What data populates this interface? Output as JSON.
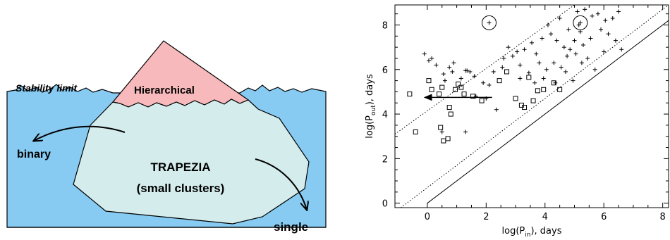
{
  "diagram": {
    "stability_label": "Stability limit",
    "hierarchical_label": "Hierarchical",
    "binary_label": "binary",
    "trapezia_title": "TRAPEZIA",
    "trapezia_subtitle": "(small clusters)",
    "single_label": "single",
    "colors": {
      "sea": "#87cbf2",
      "iceberg_submerged": "#d4ecec",
      "iceberg_tip": "#f7b9bb",
      "outline": "#000000"
    }
  },
  "chart_data": {
    "type": "scatter",
    "xlabel_prefix": "log(P",
    "xlabel_sub": "in",
    "xlabel_suffix": "), days",
    "ylabel_prefix": "log(P",
    "ylabel_sub": "out",
    "ylabel_suffix": "), days",
    "xlim": [
      -1.1,
      8.2
    ],
    "ylim": [
      -0.2,
      8.9
    ],
    "x_ticks": [
      0,
      2,
      4,
      6,
      8
    ],
    "x_tick_labels": [
      "0",
      "2",
      "4",
      "6",
      "8"
    ],
    "y_ticks": [
      0,
      2,
      4,
      6,
      8
    ],
    "y_tick_labels": [
      "0",
      "2",
      "4",
      "6",
      "8"
    ],
    "grid": false,
    "series": [
      {
        "marker": "plus",
        "points": [
          [
            -0.1,
            6.7
          ],
          [
            0.05,
            6.4
          ],
          [
            0.15,
            6.5
          ],
          [
            0.3,
            6.2
          ],
          [
            0.55,
            5.8
          ],
          [
            0.6,
            5.5
          ],
          [
            0.75,
            6.1
          ],
          [
            0.85,
            5.9
          ],
          [
            0.9,
            6.3
          ],
          [
            1.15,
            5.6
          ],
          [
            1.35,
            5.95
          ],
          [
            1.45,
            5.9
          ],
          [
            1.6,
            5.7
          ],
          [
            1.65,
            4.8
          ],
          [
            1.9,
            5.4
          ],
          [
            2.0,
            4.7
          ],
          [
            2.1,
            5.3
          ],
          [
            2.25,
            5.9
          ],
          [
            2.35,
            4.2
          ],
          [
            2.55,
            6.1
          ],
          [
            2.6,
            6.5
          ],
          [
            2.75,
            7.0
          ],
          [
            2.9,
            6.6
          ],
          [
            3.05,
            6.8
          ],
          [
            3.15,
            6.2
          ],
          [
            3.3,
            6.9
          ],
          [
            3.45,
            5.85
          ],
          [
            3.55,
            7.2
          ],
          [
            3.65,
            5.4
          ],
          [
            3.7,
            6.7
          ],
          [
            3.8,
            6.3
          ],
          [
            3.9,
            7.4
          ],
          [
            3.95,
            5.6
          ],
          [
            4.05,
            6.0
          ],
          [
            4.1,
            8.0
          ],
          [
            4.2,
            7.6
          ],
          [
            4.3,
            6.3
          ],
          [
            4.35,
            5.4
          ],
          [
            4.4,
            7.3
          ],
          [
            4.5,
            8.3
          ],
          [
            4.55,
            6.1
          ],
          [
            4.65,
            7.0
          ],
          [
            4.7,
            5.9
          ],
          [
            4.75,
            6.6
          ],
          [
            4.8,
            7.8
          ],
          [
            4.85,
            6.9
          ],
          [
            4.95,
            5.5
          ],
          [
            5.0,
            7.3
          ],
          [
            5.05,
            6.7
          ],
          [
            5.1,
            8.6
          ],
          [
            5.15,
            8.0
          ],
          [
            5.2,
            7.7
          ],
          [
            5.25,
            6.3
          ],
          [
            5.3,
            7.1
          ],
          [
            5.35,
            8.7
          ],
          [
            5.45,
            6.5
          ],
          [
            5.55,
            7.4
          ],
          [
            5.6,
            8.4
          ],
          [
            5.7,
            6.0
          ],
          [
            5.8,
            8.5
          ],
          [
            5.9,
            7.8
          ],
          [
            6.0,
            6.8
          ],
          [
            6.05,
            8.2
          ],
          [
            6.15,
            7.6
          ],
          [
            6.3,
            8.3
          ],
          [
            6.4,
            7.3
          ],
          [
            6.5,
            8.6
          ],
          [
            6.6,
            6.9
          ],
          [
            1.3,
            5.95
          ],
          [
            3.15,
            5.6
          ],
          [
            1.3,
            3.2
          ],
          [
            0.5,
            3.2
          ],
          [
            2.1,
            8.1
          ],
          [
            5.2,
            8.1
          ]
        ]
      },
      {
        "marker": "square",
        "points": [
          [
            -0.6,
            4.9
          ],
          [
            -0.4,
            3.2
          ],
          [
            0.05,
            5.5
          ],
          [
            0.15,
            5.1
          ],
          [
            0.4,
            4.9
          ],
          [
            0.45,
            3.4
          ],
          [
            0.5,
            5.2
          ],
          [
            0.55,
            2.8
          ],
          [
            0.7,
            2.9
          ],
          [
            0.75,
            4.3
          ],
          [
            0.8,
            4.0
          ],
          [
            0.95,
            5.1
          ],
          [
            1.05,
            5.35
          ],
          [
            1.15,
            5.2
          ],
          [
            1.25,
            4.9
          ],
          [
            1.55,
            4.8
          ],
          [
            1.85,
            4.6
          ],
          [
            2.45,
            5.5
          ],
          [
            2.7,
            5.9
          ],
          [
            3.2,
            4.4
          ],
          [
            3.3,
            4.3
          ],
          [
            3.45,
            5.65
          ],
          [
            3.6,
            4.6
          ],
          [
            3.95,
            5.1
          ],
          [
            4.3,
            5.4
          ],
          [
            4.5,
            5.1
          ],
          [
            3.0,
            4.7
          ],
          [
            3.75,
            5.05
          ]
        ]
      }
    ],
    "lines": [
      {
        "style": "solid",
        "description": "y = x",
        "from": [
          0,
          0
        ],
        "to": [
          8.2,
          8.2
        ]
      },
      {
        "style": "dotted",
        "from": [
          -0.9,
          -0.2
        ],
        "to": [
          8.2,
          8.9
        ]
      },
      {
        "style": "dotted",
        "from": [
          -1.1,
          3.1
        ],
        "to": [
          5.0,
          8.9
        ]
      }
    ],
    "arrow": {
      "from": [
        2.2,
        4.75
      ],
      "to": [
        -0.1,
        4.75
      ]
    },
    "circles": [
      [
        2.1,
        8.1
      ],
      [
        5.2,
        8.1
      ]
    ]
  }
}
